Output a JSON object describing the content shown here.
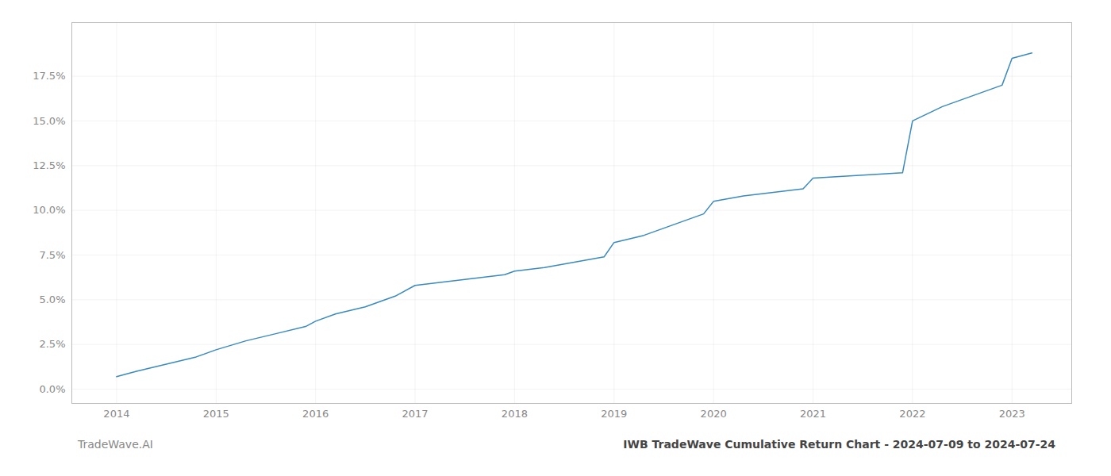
{
  "chart_data": {
    "type": "line",
    "x": [
      2014.0,
      2014.2,
      2014.5,
      2014.8,
      2015.0,
      2015.3,
      2015.6,
      2015.9,
      2016.0,
      2016.2,
      2016.5,
      2016.8,
      2017.0,
      2017.3,
      2017.6,
      2017.9,
      2018.0,
      2018.3,
      2018.6,
      2018.9,
      2019.0,
      2019.3,
      2019.6,
      2019.9,
      2020.0,
      2020.3,
      2020.6,
      2020.9,
      2021.0,
      2021.3,
      2021.6,
      2021.9,
      2022.0,
      2022.3,
      2022.6,
      2022.9,
      2023.0,
      2023.2
    ],
    "values": [
      0.007,
      0.01,
      0.014,
      0.018,
      0.022,
      0.027,
      0.031,
      0.035,
      0.038,
      0.042,
      0.046,
      0.052,
      0.058,
      0.06,
      0.062,
      0.064,
      0.066,
      0.068,
      0.071,
      0.074,
      0.082,
      0.086,
      0.092,
      0.098,
      0.105,
      0.108,
      0.11,
      0.112,
      0.118,
      0.119,
      0.12,
      0.121,
      0.15,
      0.158,
      0.164,
      0.17,
      0.185,
      0.188
    ],
    "color": "#3a8abf",
    "grid": true,
    "xlim": [
      2013.55,
      2023.6
    ],
    "xticks": [
      2014,
      2015,
      2016,
      2017,
      2018,
      2019,
      2020,
      2021,
      2022,
      2023
    ],
    "ylim": [
      -0.008,
      0.205
    ],
    "yticks": [
      {
        "value": 0.0,
        "label": "0.0%"
      },
      {
        "value": 0.025,
        "label": "2.5%"
      },
      {
        "value": 0.05,
        "label": "5.0%"
      },
      {
        "value": 0.075,
        "label": "7.5%"
      },
      {
        "value": 0.1,
        "label": "10.0%"
      },
      {
        "value": 0.125,
        "label": "12.5%"
      },
      {
        "value": 0.15,
        "label": "15.0%"
      },
      {
        "value": 0.175,
        "label": "17.5%"
      }
    ],
    "annotations": [
      "TradeWave.AI",
      "IWB TradeWave Cumulative Return Chart - 2024-07-09 to 2024-07-24"
    ]
  }
}
